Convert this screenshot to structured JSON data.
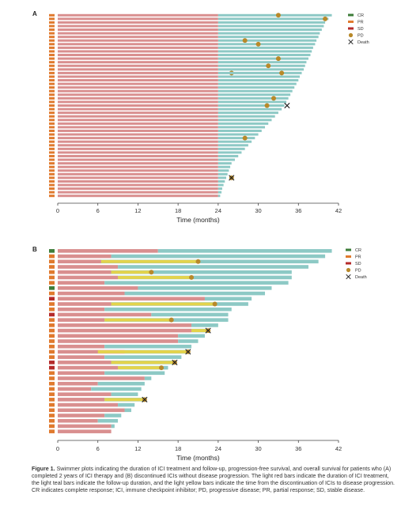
{
  "figure": {
    "caption_label": "Figure 1.",
    "caption_text": "Swimmer plots indicating the duration of ICI treatment and follow-up, progression-free survival, and overall survival for patients who (A) completed 2 years of ICI therapy and (B) discontinued ICIs without disease progression. The light red bars indicate the duration of ICI treatment, the light teal bars indicate the follow-up duration, and the light yellow bars indicate the time from the discontinuation of ICIs to disease progression. CR indicates complete response; ICI, immune checkpoint inhibitor; PD, progressive disease; PR, partial response; SD, stable disease."
  },
  "colors": {
    "treatment": "#d98f8f",
    "followup": "#8dc9c5",
    "progression": "#e3d34c",
    "pd_marker": "#b8892a",
    "death_marker": "#222222",
    "CR": "#3e7d3a",
    "PR": "#e07a2e",
    "SD": "#b52b2b",
    "axis": "#444444"
  },
  "legend_items": [
    {
      "key": "CR",
      "label": "CR",
      "kind": "response"
    },
    {
      "key": "PR",
      "label": "PR",
      "kind": "response"
    },
    {
      "key": "SD",
      "label": "SD",
      "kind": "response"
    },
    {
      "key": "PD",
      "label": "PD",
      "kind": "pd"
    },
    {
      "key": "Death",
      "label": "Death",
      "kind": "death"
    }
  ],
  "chart_data": [
    {
      "panel": "A",
      "type": "swimmer",
      "xlabel": "Time (months)",
      "xlim": [
        0,
        42
      ],
      "xticks": [
        0,
        6,
        12,
        18,
        24,
        30,
        36,
        42
      ],
      "legend_position": "top-right",
      "patients": [
        {
          "response": "PR",
          "treatment": 24,
          "total": 41,
          "pd": 33
        },
        {
          "response": "PR",
          "treatment": 24,
          "total": 40.5,
          "pd": 40
        },
        {
          "response": "PR",
          "treatment": 24,
          "total": 40
        },
        {
          "response": "PR",
          "treatment": 24,
          "total": 39.8
        },
        {
          "response": "PR",
          "treatment": 24,
          "total": 39.5
        },
        {
          "response": "PR",
          "treatment": 24,
          "total": 39.2
        },
        {
          "response": "PR",
          "treatment": 24,
          "total": 39
        },
        {
          "response": "PR",
          "treatment": 24,
          "total": 38.7,
          "pd": 28
        },
        {
          "response": "PR",
          "treatment": 24,
          "total": 38.5,
          "pd": 30
        },
        {
          "response": "PR",
          "treatment": 24,
          "total": 38.2
        },
        {
          "response": "PR",
          "treatment": 24,
          "total": 38
        },
        {
          "response": "PR",
          "treatment": 24,
          "total": 37.8
        },
        {
          "response": "PR",
          "treatment": 24,
          "total": 37.5,
          "pd": 33
        },
        {
          "response": "PR",
          "treatment": 24,
          "total": 37.2
        },
        {
          "response": "PR",
          "treatment": 24,
          "total": 37,
          "pd": 31.5
        },
        {
          "response": "PR",
          "treatment": 24,
          "total": 36.8,
          "pd": 26,
          "pd_row_shift": 1
        },
        {
          "response": "PR",
          "treatment": 24,
          "total": 36.5,
          "pd": 33.5
        },
        {
          "response": "PR",
          "treatment": 24,
          "total": 36.2
        },
        {
          "response": "PR",
          "treatment": 24,
          "total": 36
        },
        {
          "response": "PR",
          "treatment": 24,
          "total": 35.7
        },
        {
          "response": "PR",
          "treatment": 24,
          "total": 35.4
        },
        {
          "response": "PR",
          "treatment": 24,
          "total": 35.1
        },
        {
          "response": "PR",
          "treatment": 24,
          "total": 34.8
        },
        {
          "response": "PR",
          "treatment": 24,
          "total": 34.5,
          "pd": 32.3
        },
        {
          "response": "PR",
          "treatment": 24,
          "total": 34.2
        },
        {
          "response": "PR",
          "treatment": 24,
          "total": 33.9,
          "pd": 31.3,
          "death": 34.3
        },
        {
          "response": "PR",
          "treatment": 24,
          "total": 33.5
        },
        {
          "response": "PR",
          "treatment": 24,
          "total": 33
        },
        {
          "response": "PR",
          "treatment": 24,
          "total": 32.5
        },
        {
          "response": "PR",
          "treatment": 24,
          "total": 32
        },
        {
          "response": "PR",
          "treatment": 24,
          "total": 31.5
        },
        {
          "response": "PR",
          "treatment": 24,
          "total": 31
        },
        {
          "response": "PR",
          "treatment": 24,
          "total": 30.5
        },
        {
          "response": "PR",
          "treatment": 24,
          "total": 30
        },
        {
          "response": "PR",
          "treatment": 24,
          "total": 29.5,
          "pd": 28
        },
        {
          "response": "PR",
          "treatment": 24,
          "total": 29
        },
        {
          "response": "PR",
          "treatment": 24,
          "total": 28.5
        },
        {
          "response": "PR",
          "treatment": 24,
          "total": 28
        },
        {
          "response": "PR",
          "treatment": 24,
          "total": 27.5
        },
        {
          "response": "PR",
          "treatment": 24,
          "total": 27
        },
        {
          "response": "PR",
          "treatment": 24,
          "total": 26.5
        },
        {
          "response": "PR",
          "treatment": 24,
          "total": 26
        },
        {
          "response": "PR",
          "treatment": 24,
          "total": 25.8
        },
        {
          "response": "PR",
          "treatment": 24,
          "total": 25.6
        },
        {
          "response": "PR",
          "treatment": 24,
          "total": 25.4
        },
        {
          "response": "PR",
          "treatment": 24,
          "total": 25.2,
          "pd": 26,
          "death": 26
        },
        {
          "response": "PR",
          "treatment": 24,
          "total": 25
        },
        {
          "response": "PR",
          "treatment": 24,
          "total": 24.8
        },
        {
          "response": "PR",
          "treatment": 24,
          "total": 24.6
        },
        {
          "response": "PR",
          "treatment": 24,
          "total": 24.5
        },
        {
          "response": "PR",
          "treatment": 24,
          "total": 24.3
        }
      ]
    },
    {
      "panel": "B",
      "type": "swimmer",
      "xlabel": "Time (months)",
      "xlim": [
        0,
        42
      ],
      "xticks": [
        0,
        6,
        12,
        18,
        24,
        30,
        36,
        42
      ],
      "legend_position": "top-right",
      "patients": [
        {
          "response": "CR",
          "treatment": 15,
          "total": 41
        },
        {
          "response": "PR",
          "treatment": 8,
          "total": 40
        },
        {
          "response": "PR",
          "treatment": 6.5,
          "prog_start": 6.5,
          "pd": 21,
          "total": 39
        },
        {
          "response": "PR",
          "treatment": 9,
          "total": 37.5
        },
        {
          "response": "PR",
          "treatment": 8,
          "prog_start": 8,
          "pd": 14,
          "total": 35
        },
        {
          "response": "PR",
          "treatment": 9,
          "prog_start": 9,
          "pd": 20,
          "total": 35
        },
        {
          "response": "PR",
          "treatment": 7,
          "total": 34.5
        },
        {
          "response": "CR",
          "treatment": 12,
          "total": 32
        },
        {
          "response": "PR",
          "treatment": 10,
          "total": 31
        },
        {
          "response": "SD",
          "treatment": 22,
          "total": 29
        },
        {
          "response": "PR",
          "treatment": 8,
          "prog_start": 8,
          "pd": 23.5,
          "total": 28.5
        },
        {
          "response": "PR",
          "treatment": 7,
          "total": 26
        },
        {
          "response": "SD",
          "treatment": 14,
          "total": 25.5
        },
        {
          "response": "PR",
          "treatment": 7,
          "prog_start": 7,
          "pd": 17,
          "total": 25.5
        },
        {
          "response": "PR",
          "treatment": 20,
          "total": 24
        },
        {
          "response": "PR",
          "treatment": 20,
          "prog_start": 20,
          "pd": 22.5,
          "death": 22.5,
          "total": 22.5
        },
        {
          "response": "PR",
          "treatment": 18,
          "total": 22
        },
        {
          "response": "PR",
          "treatment": 18,
          "total": 21
        },
        {
          "response": "PR",
          "treatment": 7,
          "total": 20
        },
        {
          "response": "PR",
          "treatment": 10,
          "prog_start": 6,
          "pd": 19.5,
          "death": 19.5,
          "total": 19.5
        },
        {
          "response": "PR",
          "treatment": 7,
          "total": 18.5
        },
        {
          "response": "SD",
          "treatment": 8,
          "prog_start": 8,
          "pd": 17.5,
          "death": 17.5,
          "total": 17.5
        },
        {
          "response": "SD",
          "treatment": 9,
          "prog_start": 9,
          "pd": 15.5,
          "total": 16.5
        },
        {
          "response": "PR",
          "treatment": 7,
          "total": 16
        },
        {
          "response": "PR",
          "treatment": 13,
          "total": 14
        },
        {
          "response": "PR",
          "treatment": 6,
          "total": 13
        },
        {
          "response": "PR",
          "treatment": 5,
          "total": 12.5
        },
        {
          "response": "PR",
          "treatment": 8,
          "total": 12
        },
        {
          "response": "PR",
          "treatment": 7,
          "prog_start": 7,
          "pd": 13,
          "death": 13,
          "total": 13
        },
        {
          "response": "PR",
          "treatment": 9,
          "total": 11.5
        },
        {
          "response": "PR",
          "treatment": 10,
          "total": 11
        },
        {
          "response": "PR",
          "treatment": 7,
          "total": 9.5
        },
        {
          "response": "PR",
          "treatment": 6,
          "total": 9
        },
        {
          "response": "PR",
          "treatment": 8,
          "total": 8.5
        },
        {
          "response": "PR",
          "treatment": 8,
          "total": 8
        }
      ]
    }
  ]
}
